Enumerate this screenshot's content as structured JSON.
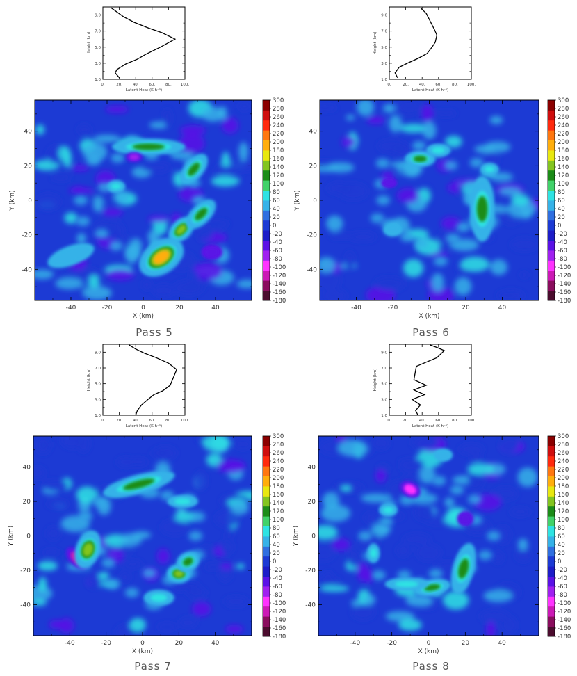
{
  "colors": {
    "scale": [
      "#4b0c2e",
      "#8a0d5e",
      "#cc19b6",
      "#ff33ff",
      "#a020f0",
      "#5a12e6",
      "#1d1dc8",
      "#1c3ad4",
      "#2f6fe0",
      "#35b2e8",
      "#2ee3e3",
      "#41d26a",
      "#1c8c18",
      "#83c51f",
      "#e8e80f",
      "#ffae0c",
      "#ff7710",
      "#ff2a0e",
      "#cf0e0e",
      "#8b0000"
    ]
  },
  "panels": [
    {
      "id": "p5",
      "title": "Pass 5",
      "profile": {
        "xlabel": "Latent Heat (K h⁻¹)",
        "ylabel": "Height (km)",
        "xticks": [
          "0.",
          "20.",
          "40.",
          "60.",
          "80.",
          "100."
        ],
        "yticks": [
          "1.0",
          "3.0",
          "5.0",
          "7.0",
          "9.0"
        ]
      },
      "map": {
        "xlabel": "X (km)",
        "ylabel": "Y (km)",
        "xticks": [
          "-40",
          "-20",
          "0",
          "20",
          "40"
        ],
        "yticks": [
          "-40",
          "-20",
          "0",
          "20",
          "40"
        ]
      },
      "colorbar_ticks": [
        "300",
        "280",
        "260",
        "240",
        "220",
        "200",
        "180",
        "160",
        "140",
        "120",
        "100",
        "80",
        "60",
        "40",
        "20",
        "0",
        "-20",
        "-40",
        "-60",
        "-80",
        "-100",
        "-120",
        "-140",
        "-160",
        "-180"
      ]
    },
    {
      "id": "p6",
      "title": "Pass 6",
      "profile": {
        "xlabel": "Latent Heat (K h⁻¹)",
        "ylabel": "Height (km)",
        "xticks": [
          "0.",
          "20.",
          "40.",
          "60.",
          "80.",
          "100."
        ],
        "yticks": [
          "1.0",
          "3.0",
          "5.0",
          "7.0",
          "9.0"
        ]
      },
      "map": {
        "xlabel": "X (km)",
        "ylabel": "Y (km)",
        "xticks": [
          "-40",
          "-20",
          "0",
          "20",
          "40"
        ],
        "yticks": [
          "-40",
          "-20",
          "0",
          "20",
          "40"
        ]
      },
      "colorbar_ticks": [
        "300",
        "280",
        "260",
        "240",
        "220",
        "200",
        "180",
        "160",
        "140",
        "120",
        "100",
        "80",
        "60",
        "40",
        "20",
        "0",
        "-20",
        "-40",
        "-60",
        "-80",
        "-100",
        "-120",
        "-140",
        "-160",
        "-180"
      ]
    },
    {
      "id": "p7",
      "title": "Pass 7",
      "profile": {
        "xlabel": "Latent Heat (K h⁻¹)",
        "ylabel": "Height (km)",
        "xticks": [
          "0.",
          "20.",
          "40.",
          "60.",
          "80.",
          "100."
        ],
        "yticks": [
          "1.0",
          "3.0",
          "5.0",
          "7.0",
          "9.0"
        ]
      },
      "map": {
        "xlabel": "X (km)",
        "ylabel": "Y (km)",
        "xticks": [
          "-40",
          "-20",
          "0",
          "20",
          "40"
        ],
        "yticks": [
          "-40",
          "-20",
          "0",
          "20",
          "40"
        ]
      },
      "colorbar_ticks": [
        "300",
        "280",
        "260",
        "240",
        "220",
        "200",
        "180",
        "160",
        "140",
        "120",
        "100",
        "80",
        "60",
        "40",
        "20",
        "0",
        "-20",
        "-40",
        "-60",
        "-80",
        "-100",
        "-120",
        "-140",
        "-160",
        "-180"
      ]
    },
    {
      "id": "p8",
      "title": "Pass 8",
      "profile": {
        "xlabel": "Latent Heat (K h⁻¹)",
        "ylabel": "Height (km)",
        "xticks": [
          "0.",
          "20.",
          "40.",
          "60.",
          "80.",
          "100."
        ],
        "yticks": [
          "1.0",
          "3.0",
          "5.0",
          "7.0",
          "9.0"
        ]
      },
      "map": {
        "xlabel": "X (km)",
        "ylabel": "Y (km)",
        "xticks": [
          "-40",
          "-20",
          "0",
          "20",
          "40"
        ],
        "yticks": [
          "-40",
          "-20",
          "0",
          "20",
          "40"
        ]
      },
      "colorbar_ticks": [
        "300",
        "280",
        "260",
        "240",
        "220",
        "200",
        "180",
        "160",
        "140",
        "120",
        "100",
        "80",
        "60",
        "40",
        "20",
        "0",
        "-20",
        "-40",
        "-60",
        "-80",
        "-100",
        "-120",
        "-140",
        "-160",
        "-180"
      ]
    }
  ],
  "chart_data": [
    {
      "type": "line",
      "panel": "Pass 5 profile",
      "xlim": [
        0,
        100
      ],
      "ylim": [
        1,
        10
      ],
      "series": [
        {
          "x": [
            20,
            15,
            17,
            28,
            42,
            52,
            70,
            88,
            72,
            55,
            38,
            25,
            10
          ],
          "y": [
            1.2,
            1.8,
            2.2,
            2.9,
            3.5,
            4.1,
            5.0,
            6.0,
            6.8,
            7.4,
            8.1,
            8.8,
            9.9
          ]
        }
      ]
    },
    {
      "type": "line",
      "panel": "Pass 6 profile",
      "xlim": [
        0,
        100
      ],
      "ylim": [
        1,
        10
      ],
      "series": [
        {
          "x": [
            10,
            7,
            12,
            22,
            35,
            46,
            52,
            56,
            58,
            55,
            50,
            45,
            38
          ],
          "y": [
            1.2,
            1.8,
            2.5,
            3.0,
            3.6,
            4.2,
            5.0,
            5.6,
            6.5,
            7.2,
            8.2,
            9.2,
            9.9
          ]
        }
      ]
    },
    {
      "type": "line",
      "panel": "Pass 7 profile",
      "xlim": [
        0,
        100
      ],
      "ylim": [
        1,
        10
      ],
      "series": [
        {
          "x": [
            40,
            42,
            47,
            55,
            62,
            73,
            82,
            90,
            80,
            65,
            50,
            40,
            32
          ],
          "y": [
            1.0,
            1.6,
            2.3,
            3.0,
            3.6,
            4.1,
            4.8,
            6.8,
            7.6,
            8.3,
            8.9,
            9.4,
            9.9
          ]
        }
      ]
    },
    {
      "type": "line",
      "panel": "Pass 8 profile",
      "xlim": [
        0,
        100
      ],
      "ylim": [
        1,
        10
      ],
      "series": [
        {
          "x": [
            35,
            32,
            38,
            28,
            43,
            30,
            45,
            30,
            33,
            58,
            67,
            58,
            50
          ],
          "y": [
            1.0,
            1.6,
            2.3,
            3.0,
            3.6,
            4.2,
            4.8,
            5.5,
            7.2,
            8.3,
            9.2,
            9.6,
            9.9
          ]
        }
      ]
    },
    {
      "type": "heatmap",
      "panel": "Pass 5 map",
      "xlim": [
        -60,
        60
      ],
      "ylim": [
        -58,
        58
      ],
      "value_range": [
        -180,
        300
      ],
      "features": [
        {
          "x": 10,
          "y": -33,
          "sx": 8,
          "sy": 5,
          "rot": -35,
          "value": 200
        },
        {
          "x": 21,
          "y": -17,
          "sx": 5,
          "sy": 3,
          "rot": -45,
          "value": 150
        },
        {
          "x": 32,
          "y": -8,
          "sx": 6,
          "sy": 3,
          "rot": -45,
          "value": 110
        },
        {
          "x": 3,
          "y": 31,
          "sx": 12,
          "sy": 2.5,
          "rot": 0,
          "value": 120
        },
        {
          "x": 28,
          "y": 18,
          "sx": 6,
          "sy": 3,
          "rot": -50,
          "value": 110
        },
        {
          "x": -15,
          "y": 8,
          "sx": 3,
          "sy": 2,
          "rot": 0,
          "value": 100
        },
        {
          "x": -40,
          "y": -32,
          "sx": 8,
          "sy": 3,
          "rot": -20,
          "value": 50
        },
        {
          "x": 38,
          "y": -30,
          "sx": 4,
          "sy": 3,
          "rot": 0,
          "value": -60
        },
        {
          "x": -5,
          "y": 25,
          "sx": 3,
          "sy": 2,
          "rot": 0,
          "value": -70
        }
      ]
    },
    {
      "type": "heatmap",
      "panel": "Pass 6 map",
      "xlim": [
        -60,
        60
      ],
      "ylim": [
        -58,
        58
      ],
      "value_range": [
        -180,
        300
      ],
      "features": [
        {
          "x": 29,
          "y": -5,
          "sx": 4,
          "sy": 10,
          "rot": 0,
          "value": 140
        },
        {
          "x": -5,
          "y": 24,
          "sx": 5,
          "sy": 2.5,
          "rot": 0,
          "value": 120
        },
        {
          "x": 5,
          "y": 29,
          "sx": 4,
          "sy": 2,
          "rot": 0,
          "value": 90
        },
        {
          "x": 33,
          "y": 18,
          "sx": 3,
          "sy": 2,
          "rot": 0,
          "value": 80
        },
        {
          "x": -20,
          "y": -17,
          "sx": 3,
          "sy": 2,
          "rot": 0,
          "value": 70
        },
        {
          "x": -22,
          "y": 10,
          "sx": 3,
          "sy": 2,
          "rot": 0,
          "value": -60
        }
      ]
    },
    {
      "type": "heatmap",
      "panel": "Pass 7 map",
      "xlim": [
        -60,
        60
      ],
      "ylim": [
        -58,
        58
      ],
      "value_range": [
        -180,
        300
      ],
      "features": [
        {
          "x": -36,
          "y": -13,
          "sx": 5,
          "sy": 3,
          "rot": 45,
          "value": -110
        },
        {
          "x": -30,
          "y": -8,
          "sx": 4,
          "sy": 6,
          "rot": 20,
          "value": 160
        },
        {
          "x": -2,
          "y": 30,
          "sx": 12,
          "sy": 3,
          "rot": -15,
          "value": 130
        },
        {
          "x": 20,
          "y": -22,
          "sx": 4,
          "sy": 3,
          "rot": 0,
          "value": 180
        },
        {
          "x": 25,
          "y": -15,
          "sx": 4,
          "sy": 3,
          "rot": -30,
          "value": 110
        },
        {
          "x": 9,
          "y": -36,
          "sx": 5,
          "sy": 2.5,
          "rot": 0,
          "value": 100
        },
        {
          "x": 22,
          "y": 20,
          "sx": 5,
          "sy": 2,
          "rot": 0,
          "value": 90
        }
      ]
    },
    {
      "type": "heatmap",
      "panel": "Pass 8 map",
      "xlim": [
        -60,
        60
      ],
      "ylim": [
        -58,
        58
      ],
      "value_range": [
        -180,
        300
      ],
      "features": [
        {
          "x": -10,
          "y": 27,
          "sx": 4,
          "sy": 3,
          "rot": 30,
          "value": -100
        },
        {
          "x": 19,
          "y": -19,
          "sx": 3.5,
          "sy": 8,
          "rot": 15,
          "value": 130
        },
        {
          "x": 2,
          "y": -30,
          "sx": 6,
          "sy": 2.5,
          "rot": -10,
          "value": 140
        },
        {
          "x": -12,
          "y": -28,
          "sx": 7,
          "sy": 2,
          "rot": 0,
          "value": 100
        },
        {
          "x": -30,
          "y": -10,
          "sx": 2,
          "sy": 3,
          "rot": 0,
          "value": 90
        },
        {
          "x": -22,
          "y": 15,
          "sx": 3,
          "sy": 2,
          "rot": 0,
          "value": 80
        },
        {
          "x": 8,
          "y": 47,
          "sx": 3,
          "sy": 2,
          "rot": 0,
          "value": 70
        },
        {
          "x": 20,
          "y": 10,
          "sx": 3,
          "sy": 3,
          "rot": 0,
          "value": -60
        }
      ]
    }
  ]
}
